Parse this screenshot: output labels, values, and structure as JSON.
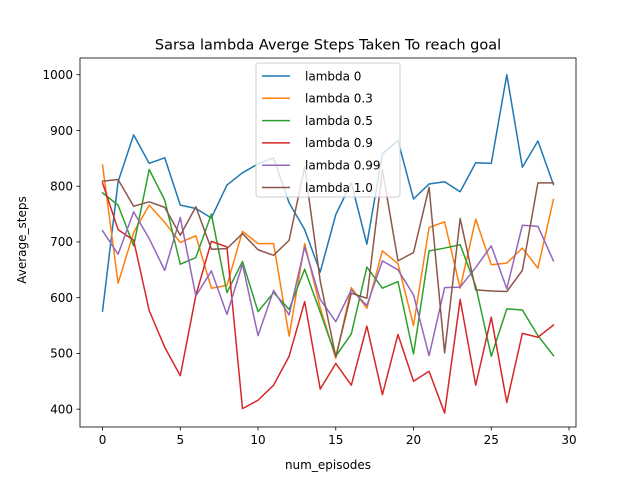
{
  "chart_data": {
    "type": "line",
    "title": "Sarsa lambda Averge Steps Taken To reach goal",
    "xlabel": "num_episodes",
    "ylabel": "Average_steps",
    "xlim": [
      -1.45,
      30.45
    ],
    "ylim": [
      368,
      1030
    ],
    "xticks": [
      0,
      5,
      10,
      15,
      20,
      25,
      30
    ],
    "yticks": [
      400,
      500,
      600,
      700,
      800,
      900,
      1000
    ],
    "grid": false,
    "legend_position": "upper-center",
    "x": [
      0,
      1,
      2,
      3,
      4,
      5,
      6,
      7,
      8,
      9,
      10,
      11,
      12,
      13,
      14,
      15,
      16,
      17,
      18,
      19,
      20,
      21,
      22,
      23,
      24,
      25,
      26,
      27,
      28,
      29
    ],
    "series": [
      {
        "name": "lambda 0",
        "color": "#1f77b4",
        "values": [
          576,
          808,
          892,
          841,
          851,
          766,
          760,
          743,
          802,
          824,
          840,
          851,
          770,
          722,
          646,
          749,
          806,
          696,
          858,
          882,
          777,
          804,
          808,
          790,
          842,
          841,
          1000,
          834,
          881,
          803
        ]
      },
      {
        "name": "lambda 0.3",
        "color": "#ff7f0e",
        "values": [
          838,
          626,
          717,
          766,
          735,
          699,
          711,
          617,
          622,
          719,
          697,
          697,
          531,
          697,
          582,
          491,
          618,
          581,
          684,
          661,
          550,
          726,
          736,
          617,
          741,
          659,
          662,
          689,
          653,
          776
        ]
      },
      {
        "name": "lambda 0.5",
        "color": "#2ca02c",
        "values": [
          788,
          766,
          693,
          830,
          775,
          660,
          672,
          750,
          609,
          665,
          575,
          609,
          579,
          651,
          574,
          495,
          535,
          655,
          617,
          629,
          499,
          684,
          689,
          695,
          621,
          495,
          580,
          578,
          532,
          496
        ]
      },
      {
        "name": "lambda 0.9",
        "color": "#d62728",
        "values": [
          806,
          722,
          703,
          577,
          511,
          460,
          604,
          701,
          691,
          401,
          416,
          443,
          495,
          593,
          436,
          482,
          443,
          549,
          426,
          534,
          450,
          468,
          393,
          597,
          443,
          565,
          412,
          536,
          529,
          551
        ]
      },
      {
        "name": "lambda 0.99",
        "color": "#9467bd",
        "values": [
          720,
          678,
          754,
          706,
          649,
          744,
          603,
          648,
          570,
          660,
          532,
          613,
          569,
          691,
          597,
          557,
          614,
          586,
          666,
          650,
          605,
          496,
          618,
          619,
          654,
          693,
          616,
          730,
          728,
          666
        ]
      },
      {
        "name": "lambda 1.0",
        "color": "#8c564b",
        "values": [
          809,
          812,
          764,
          772,
          762,
          712,
          763,
          687,
          688,
          715,
          686,
          676,
          703,
          835,
          630,
          494,
          608,
          599,
          829,
          666,
          681,
          798,
          501,
          742,
          614,
          612,
          611,
          649,
          806,
          806
        ]
      }
    ]
  }
}
